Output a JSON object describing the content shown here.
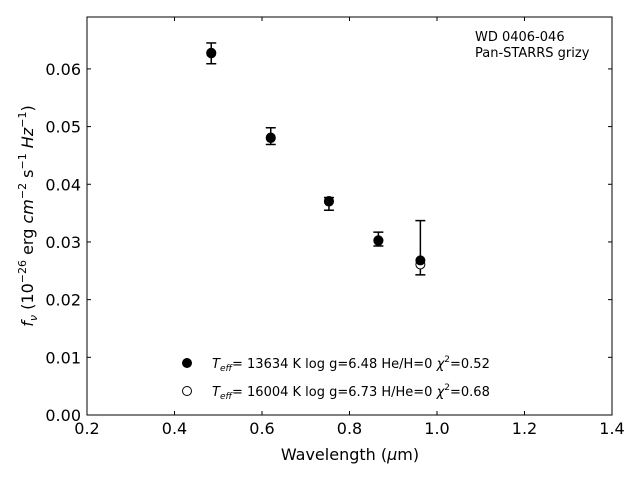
{
  "chart_data": {
    "type": "scatter",
    "xlabel": {
      "prefix": "Wavelength (",
      "mu": "μ",
      "suffix": "m)"
    },
    "ylabel": {
      "f": "f",
      "nu": "ν",
      "part1": " (10",
      "exp1": "−26",
      "part2": " erg ",
      "cm": "cm",
      "exp2": "−2",
      "s": " s",
      "exp3": "−1",
      "hz": " Hz",
      "exp4": "−1",
      "close": ")"
    },
    "xlim": [
      0.2,
      1.4
    ],
    "ylim": [
      0.0,
      0.069
    ],
    "xticks": [
      "0.2",
      "0.4",
      "0.6",
      "0.8",
      "1.0",
      "1.2",
      "1.4"
    ],
    "yticks": [
      "0.00",
      "0.01",
      "0.02",
      "0.03",
      "0.04",
      "0.05",
      "0.06"
    ],
    "annotation": [
      "WD 0406-046",
      "Pan-STARRS grizy"
    ],
    "grid": false,
    "legend_position": "lower-center",
    "observed": {
      "x": [
        0.484,
        0.62,
        0.753,
        0.866,
        0.962
      ],
      "y": [
        0.0627,
        0.0484,
        0.037,
        0.0304,
        0.029
      ],
      "err_low": [
        0.0609,
        0.0469,
        0.0355,
        0.0293,
        0.0243
      ],
      "err_high": [
        0.0645,
        0.0498,
        0.0377,
        0.0317,
        0.0337
      ]
    },
    "series": [
      {
        "marker": "filled-circle",
        "label": {
          "T": "T",
          "eff": "eff",
          "rest": "= 13634 K  log g=6.48  He/H=0  ",
          "chi": "χ",
          "two": "2",
          "val": "=0.52"
        },
        "x": [
          0.484,
          0.62,
          0.753,
          0.866,
          0.962
        ],
        "y": [
          0.0628,
          0.048,
          0.0371,
          0.0302,
          0.0268
        ]
      },
      {
        "marker": "open-circle",
        "label": {
          "T": "T",
          "eff": "eff",
          "rest": "= 16004 K  log g=6.73  H/He=0  ",
          "chi": "χ",
          "two": "2",
          "val": "=0.68"
        },
        "x": [
          0.484,
          0.62,
          0.753,
          0.866,
          0.962
        ],
        "y": [
          0.0627,
          0.0481,
          0.037,
          0.0303,
          0.0261
        ]
      }
    ]
  }
}
